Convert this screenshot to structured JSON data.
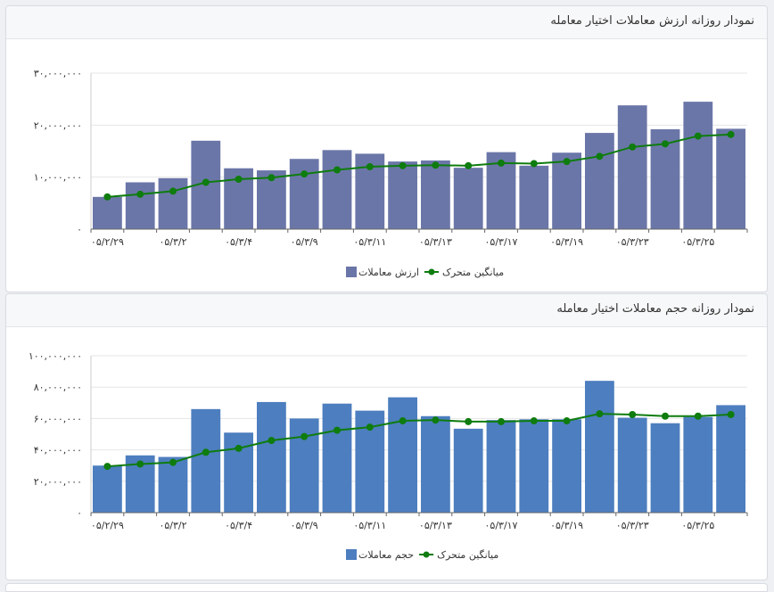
{
  "charts": [
    {
      "title": "نمودار روزانه ارزش معاملات اختیار معامله",
      "legend": {
        "bars": "ارزش معاملات",
        "line": "میانگین متحرک"
      },
      "colors": {
        "bar": "#6b76a8",
        "line": "#0e7c0e",
        "grid": "#e6e6e6"
      }
    },
    {
      "title": "نمودار روزانه حجم معاملات اختیار معامله",
      "legend": {
        "bars": "حجم معاملات",
        "line": "میانگین متحرک"
      },
      "colors": {
        "bar": "#4d7ebf",
        "line": "#0e7c0e",
        "grid": "#e6e6e6"
      }
    }
  ],
  "chart_data": [
    {
      "type": "bar",
      "categories": [
        "۰۵/۲/۲۹",
        "",
        "۰۵/۳/۲",
        "",
        "۰۵/۳/۴",
        "",
        "۰۵/۳/۹",
        "",
        "۰۵/۳/۱۱",
        "",
        "۰۵/۳/۱۳",
        "",
        "۰۵/۳/۱۷",
        "",
        "۰۵/۳/۱۹",
        "",
        "۰۵/۳/۲۳",
        "",
        "۰۵/۳/۲۵",
        ""
      ],
      "series": [
        {
          "name": "ارزش معاملات",
          "type": "bar",
          "values": [
            6200000,
            9000000,
            9800000,
            17000000,
            11700000,
            11300000,
            13500000,
            15200000,
            14500000,
            13000000,
            13200000,
            11800000,
            14800000,
            12200000,
            14700000,
            18500000,
            23800000,
            19200000,
            24500000,
            19300000
          ]
        },
        {
          "name": "میانگین متحرک",
          "type": "line",
          "values": [
            6200000,
            6700000,
            7300000,
            9000000,
            9600000,
            9900000,
            10600000,
            11400000,
            12000000,
            12200000,
            12300000,
            12200000,
            12700000,
            12600000,
            13000000,
            14000000,
            15800000,
            16400000,
            17900000,
            18200000
          ]
        }
      ],
      "ylim": [
        0,
        30000000
      ],
      "yticks": [
        "۰",
        "۱۰,۰۰۰,۰۰۰",
        "۲۰,۰۰۰,۰۰۰",
        "۳۰,۰۰۰,۰۰۰"
      ],
      "yticks_values": [
        0,
        10000000,
        20000000,
        30000000
      ],
      "grid": true,
      "legend_position": "bottom-center"
    },
    {
      "type": "bar",
      "categories": [
        "۰۵/۲/۲۹",
        "",
        "۰۵/۳/۲",
        "",
        "۰۵/۳/۴",
        "",
        "۰۵/۳/۹",
        "",
        "۰۵/۳/۱۱",
        "",
        "۰۵/۳/۱۳",
        "",
        "۰۵/۳/۱۷",
        "",
        "۰۵/۳/۱۹",
        "",
        "۰۵/۳/۲۳",
        "",
        "۰۵/۳/۲۵",
        ""
      ],
      "series": [
        {
          "name": "حجم معاملات",
          "type": "bar",
          "values": [
            30000000,
            36500000,
            35500000,
            66000000,
            51000000,
            70500000,
            60000000,
            69500000,
            65000000,
            73500000,
            61500000,
            53500000,
            59000000,
            59500000,
            59500000,
            84000000,
            60500000,
            57000000,
            61000000,
            68500000
          ]
        },
        {
          "name": "میانگین متحرک",
          "type": "line",
          "values": [
            29500000,
            31000000,
            32000000,
            38500000,
            41000000,
            46000000,
            48500000,
            52500000,
            54500000,
            58500000,
            59000000,
            58000000,
            58000000,
            58500000,
            58500000,
            63000000,
            62500000,
            61500000,
            61500000,
            62500000
          ]
        }
      ],
      "ylim": [
        0,
        100000000
      ],
      "yticks": [
        "۰",
        "۲۰,۰۰۰,۰۰۰",
        "۴۰,۰۰۰,۰۰۰",
        "۶۰,۰۰۰,۰۰۰",
        "۸۰,۰۰۰,۰۰۰",
        "۱۰۰,۰۰۰,۰۰۰"
      ],
      "yticks_values": [
        0,
        20000000,
        40000000,
        60000000,
        80000000,
        100000000
      ],
      "grid": true,
      "legend_position": "bottom-center"
    }
  ]
}
